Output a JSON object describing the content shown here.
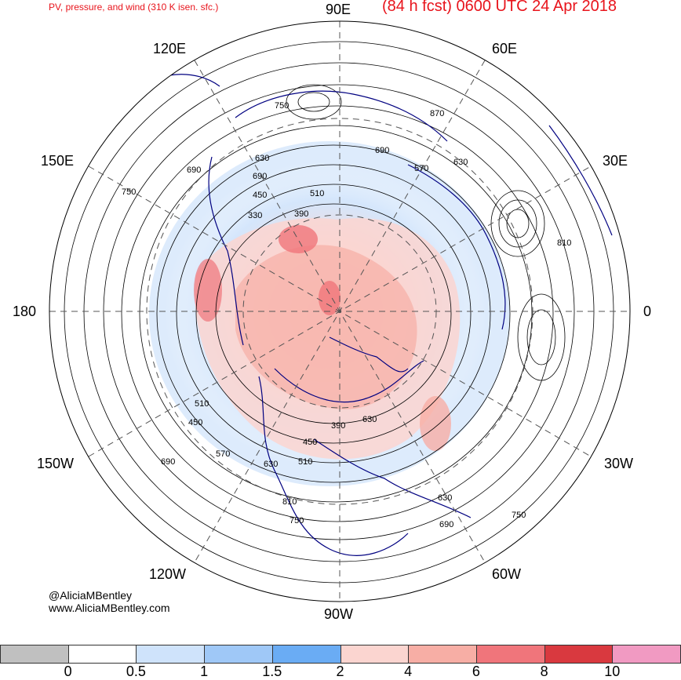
{
  "header": {
    "left_title": "PV, pressure, and wind (310 K isen. sfc.)",
    "right_title": "(84 h fcst) 0600 UTC 24 Apr 2018"
  },
  "longitude_labels": {
    "n": "90E",
    "s": "90W",
    "w": "180",
    "e": "0",
    "nw": "120E",
    "ne": "60E",
    "wnw": "150E",
    "ene": "30E",
    "wsw": "150W",
    "ese": "30W",
    "sw": "120W",
    "se": "60W"
  },
  "pressure_labels": [
    "750",
    "870",
    "690",
    "630",
    "570",
    "690",
    "750",
    "450",
    "510",
    "390",
    "330",
    "810",
    "630",
    "690",
    "510",
    "450",
    "570",
    "390",
    "630",
    "690",
    "630",
    "450",
    "510",
    "810",
    "750",
    "630",
    "690",
    "750"
  ],
  "credit": {
    "twitter": "@AliciaMBentley",
    "website": "www.AliciaMBentley.com"
  },
  "colorbar": {
    "colors": [
      "#c0c0c0",
      "#ffffff",
      "#cfe3fb",
      "#9fc8f7",
      "#6aacf4",
      "#fbd5d0",
      "#f7aea5",
      "#f0757b",
      "#d9393f",
      "#f19ac2"
    ],
    "ticks": [
      "0",
      "0.5",
      "1",
      "1.5",
      "2",
      "4",
      "6",
      "8",
      "10"
    ]
  }
}
